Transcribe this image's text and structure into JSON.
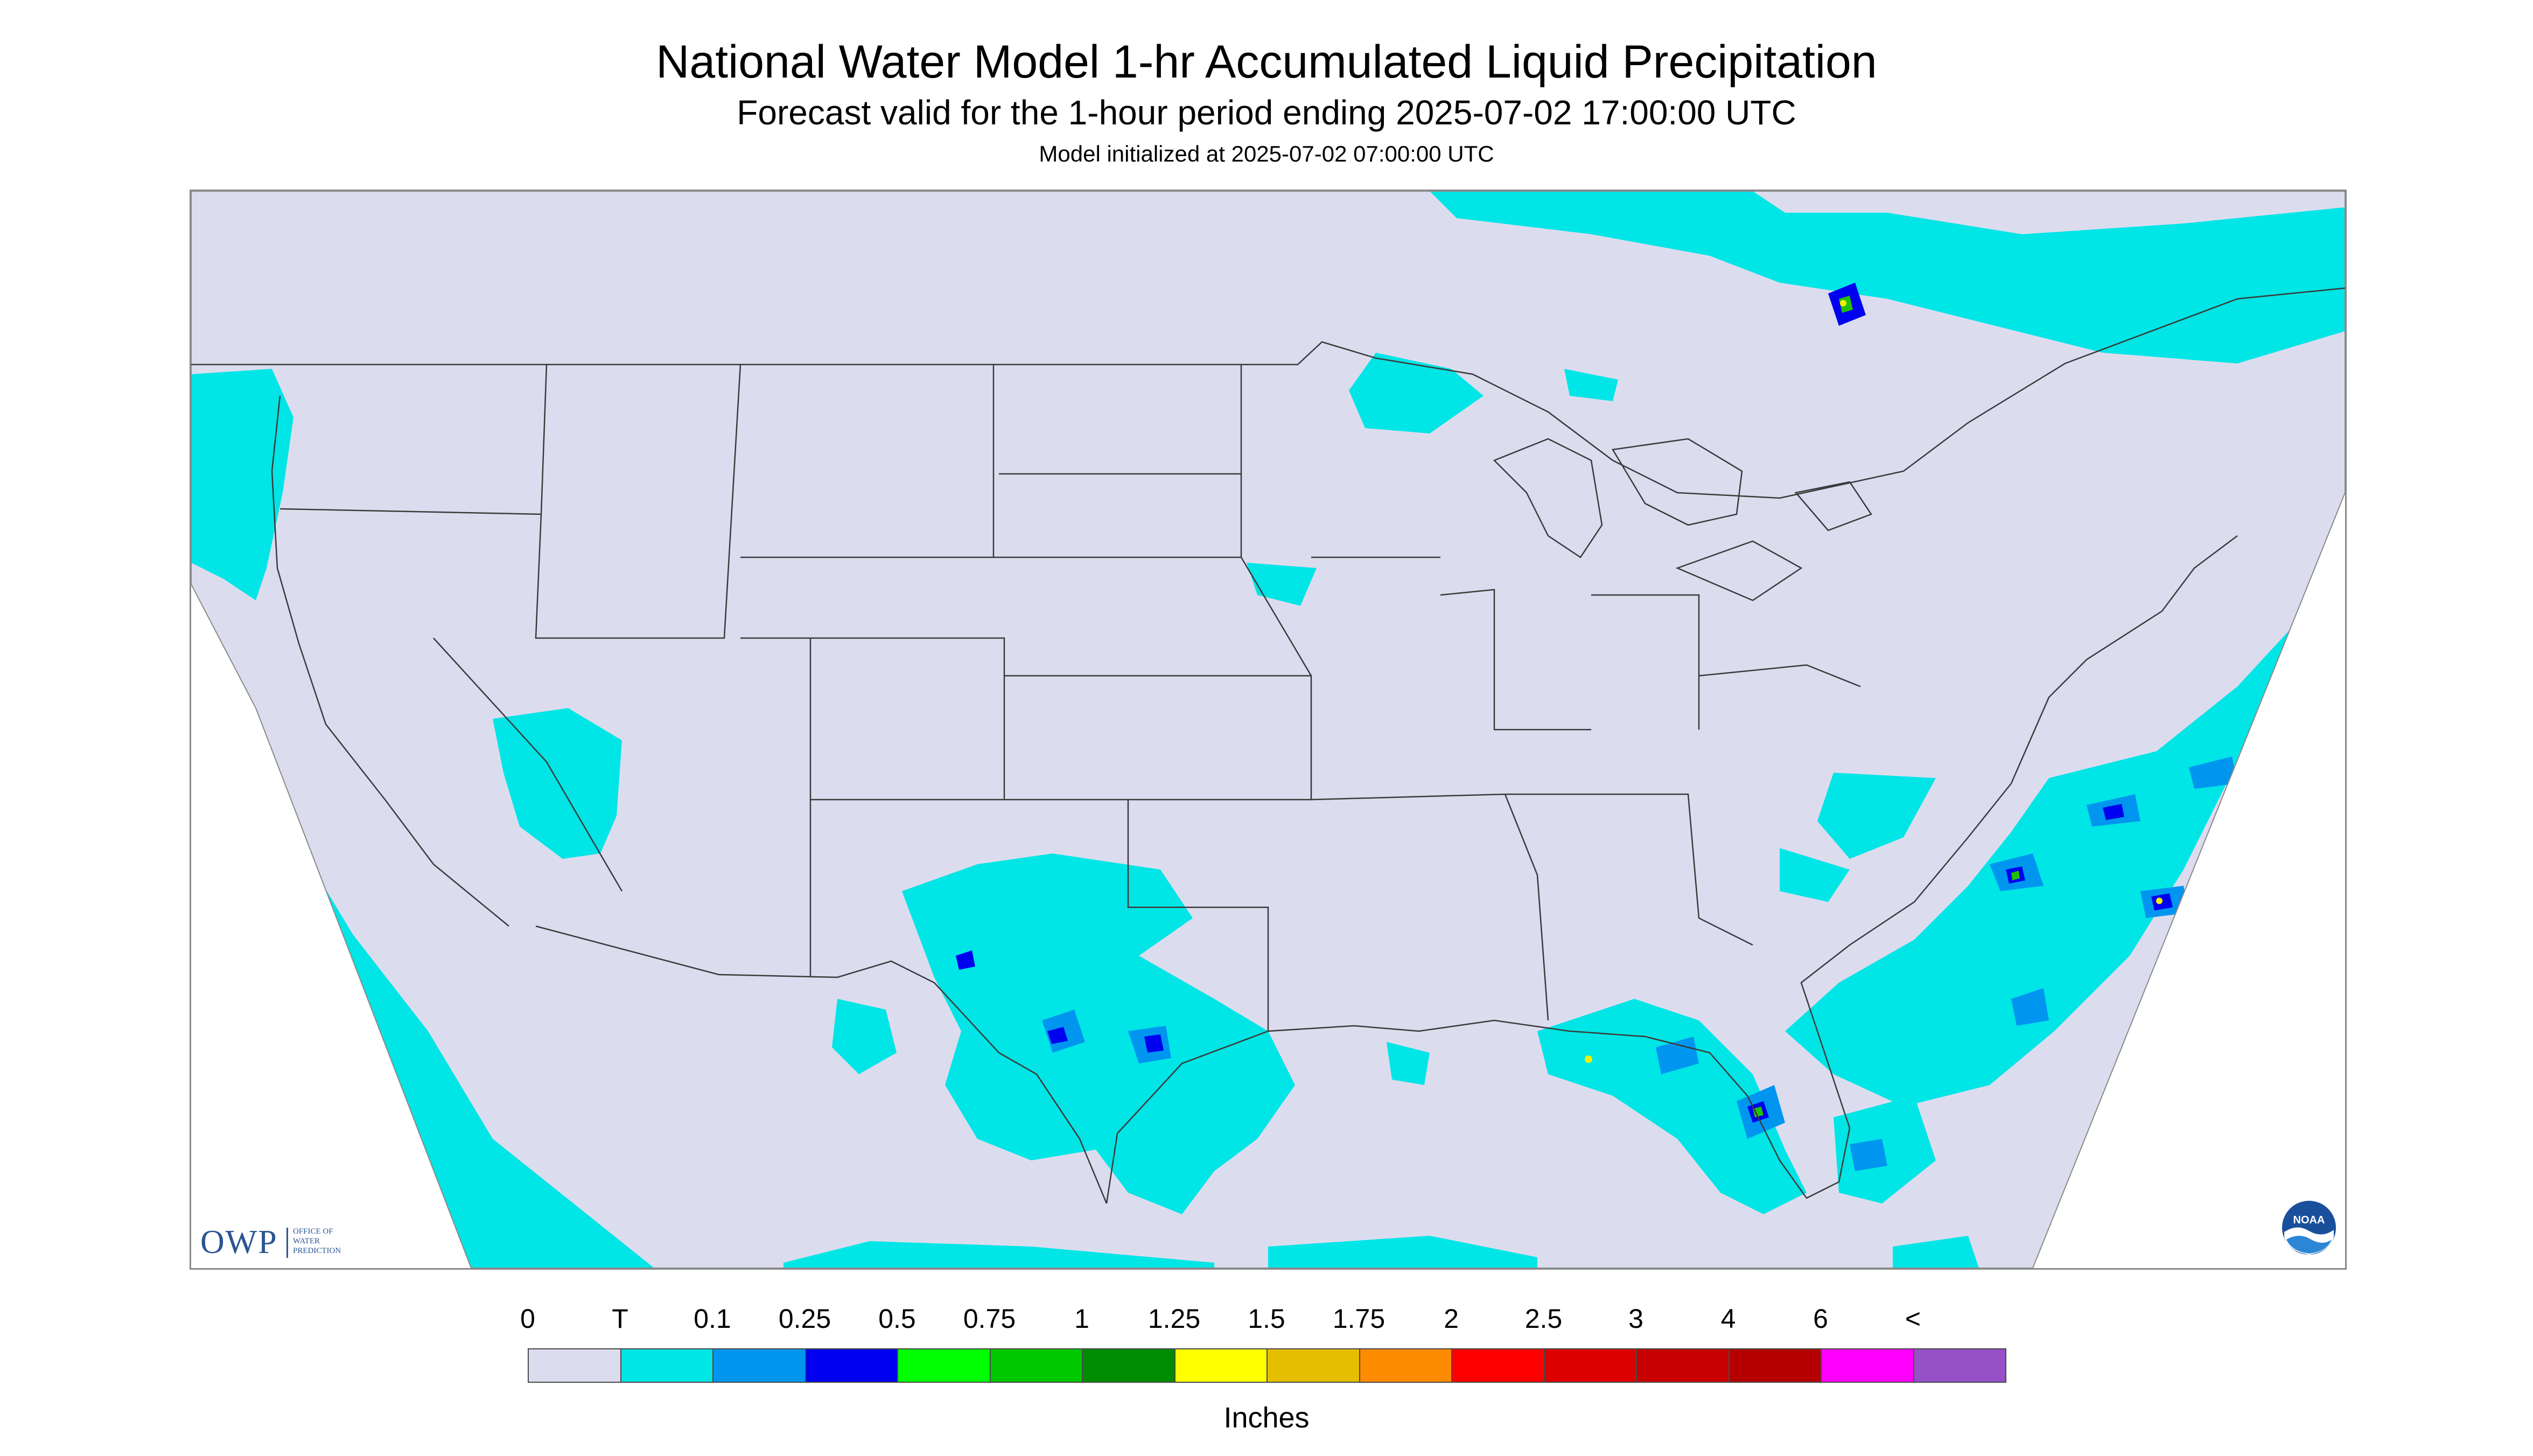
{
  "header": {
    "title": "National Water Model 1-hr Accumulated Liquid Precipitation",
    "subtitle": "Forecast valid for the 1-hour period ending 2025-07-02 17:00:00 UTC",
    "init_text": "Model initialized at 2025-07-02 07:00:00 UTC"
  },
  "map": {
    "background_color": "#dcdcef",
    "border_color": "#3a3a3a",
    "rain_colors": [
      "#00e5e5",
      "#0096f0",
      "#0000f0",
      "#22c000",
      "#f0f000"
    ]
  },
  "logos": {
    "owp_text": "OWP",
    "owp_subtext": "OFFICE OF WATER PREDICTION",
    "noaa_text": "NOAA"
  },
  "legend": {
    "labels": [
      "0",
      "T",
      "0.1",
      "0.25",
      "0.5",
      "0.75",
      "1",
      "1.25",
      "1.5",
      "1.75",
      "2",
      "2.5",
      "3",
      "4",
      "6",
      "<"
    ],
    "colors": [
      "#dcdcef",
      "#00e5e5",
      "#0096f0",
      "#0000f0",
      "#00ff00",
      "#00c800",
      "#008c00",
      "#ffff00",
      "#e6be00",
      "#ff8c00",
      "#ff0000",
      "#dc0000",
      "#c80000",
      "#b40000",
      "#ff00ff",
      "#9650c8"
    ],
    "units": "Inches"
  }
}
